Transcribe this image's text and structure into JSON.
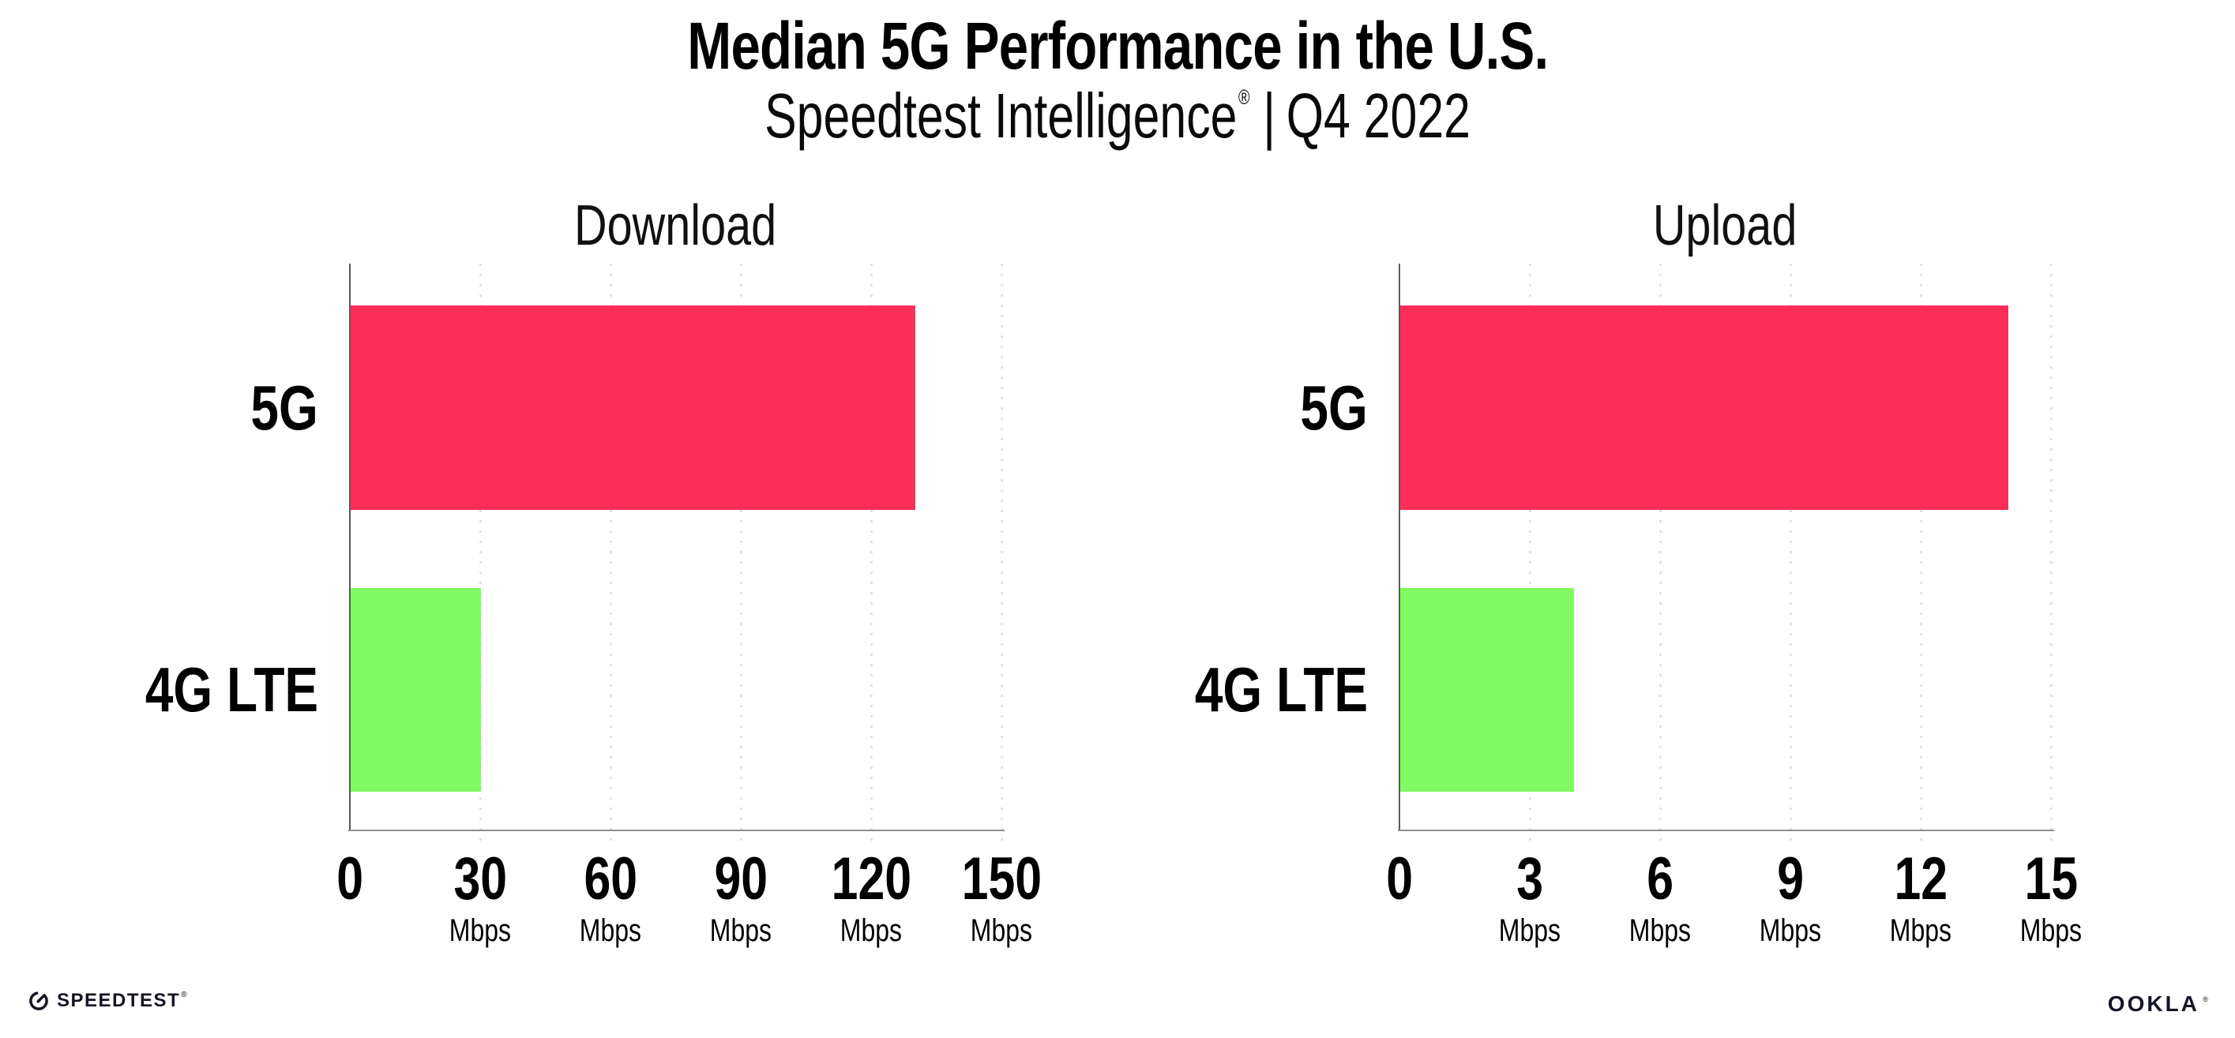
{
  "figure": {
    "title": "Median 5G Performance in the U.S.",
    "subtitle": {
      "brand": "Speedtest Intelligence",
      "registered": "®",
      "divider": "|",
      "period": "Q4 2022"
    }
  },
  "colors": {
    "bar_5g": "#FC2D58",
    "bar_4g_lte": "#80FB62",
    "gridline": "#E2E1ED",
    "y_axis": "#5A5A5A",
    "x_axis": "#8F8F8F",
    "text": "#000000"
  },
  "chart_data": [
    {
      "type": "bar",
      "orientation": "horizontal",
      "title": "Download",
      "categories": [
        "5G",
        "4G LTE"
      ],
      "values": [
        130,
        30
      ],
      "unit": "Mbps",
      "xlabel": "",
      "ylabel": "",
      "xlim": [
        0,
        150
      ],
      "xticks": [
        0,
        30,
        60,
        90,
        120,
        150
      ],
      "grid": "dotted vertical gridlines",
      "legend": "none",
      "bar_colors": [
        "#FC2D58",
        "#80FB62"
      ]
    },
    {
      "type": "bar",
      "orientation": "horizontal",
      "title": "Upload",
      "categories": [
        "5G",
        "4G LTE"
      ],
      "values": [
        14,
        4
      ],
      "unit": "Mbps",
      "xlabel": "",
      "ylabel": "",
      "xlim": [
        0,
        15
      ],
      "xticks": [
        0,
        3,
        6,
        9,
        12,
        15
      ],
      "grid": "dotted vertical gridlines",
      "legend": "none",
      "bar_colors": [
        "#FC2D58",
        "#80FB62"
      ]
    }
  ],
  "footer": {
    "speedtest": {
      "icon": "gauge-icon",
      "label": "SPEEDTEST",
      "mark": "®"
    },
    "ookla": {
      "label": "OOKLA",
      "mark": "®"
    }
  }
}
